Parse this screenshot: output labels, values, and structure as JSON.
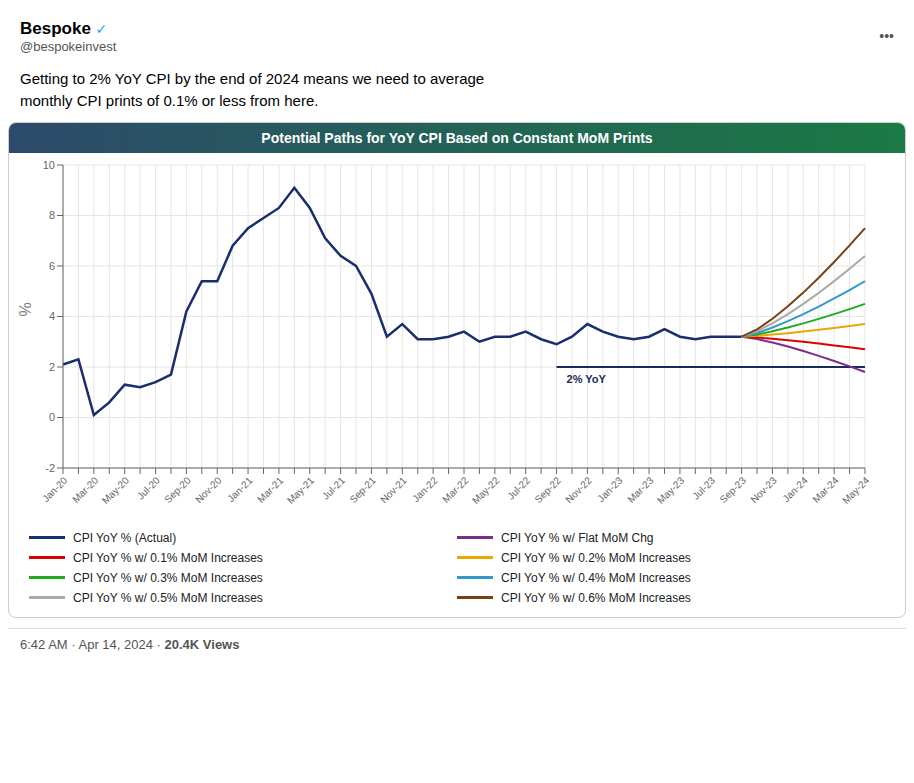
{
  "header_text1": "Bespoke",
  "header_badge": "✓",
  "header_text2": "@bespokeinvest",
  "menu": "•••",
  "body_text": "Getting to 2% YoY CPI by the end of 2024 means we need to average\nmonthly CPI prints of 0.1% or less from here.",
  "footer_text": "6:42 AM · Apr 14, 2024 · ",
  "footer_views": "20.4K Views",
  "chart_data": {
    "type": "line",
    "title": "Potential Paths for YoY CPI Based on Constant MoM Prints",
    "y_label": "%",
    "categories": [
      "Jan-20",
      null,
      "Mar-20",
      null,
      "May-20",
      null,
      "Jul-20",
      null,
      "Sep-20",
      null,
      "Nov-20",
      null,
      "Jan-21",
      null,
      "Mar-21",
      null,
      "May-21",
      null,
      "Jul-21",
      null,
      "Sep-21",
      null,
      "Nov-21",
      null,
      "Jan-22",
      null,
      "Mar-22",
      null,
      "May-22",
      null,
      "Jul-22",
      null,
      "Sep-22",
      null,
      "Nov-22",
      null,
      "Jan-23",
      null,
      "Mar-23",
      null,
      "May-23",
      null,
      "Jul-23",
      null,
      "Sep-23",
      null,
      "Nov-23",
      null,
      "Jan-24",
      null,
      "Mar-24",
      null,
      "May-24"
    ],
    "series": [
      {
        "name": "CPI YoY % (Actual)",
        "color": "#1a2e6e",
        "values": [
          2.1,
          2.3,
          0.1,
          0.6,
          1.3,
          1.2,
          1.4,
          1.7,
          4.2,
          5.4,
          5.4,
          6.8,
          7.5,
          7.9,
          8.3,
          9.1,
          8.3,
          7.1,
          6.4,
          6.0,
          4.9,
          3.2,
          3.7,
          3.1,
          3.1,
          3.2,
          3.4,
          3.0,
          3.2,
          3.2,
          3.4,
          3.1,
          2.9,
          3.2,
          3.7,
          3.4,
          3.2,
          3.1,
          3.2,
          3.5,
          3.2,
          3.1,
          3.2,
          3.2,
          3.2,
          null,
          null,
          null,
          null,
          null,
          null,
          null,
          null
        ]
      },
      {
        "name": "CPI YoY % w/ Flat MoM Chg",
        "color": "#7b2d8b",
        "values": [
          null,
          null,
          null,
          null,
          null,
          null,
          null,
          null,
          null,
          null,
          null,
          null,
          null,
          null,
          null,
          null,
          null,
          null,
          null,
          null,
          null,
          null,
          null,
          null,
          null,
          null,
          null,
          null,
          null,
          null,
          null,
          null,
          null,
          null,
          null,
          null,
          null,
          null,
          null,
          null,
          null,
          null,
          null,
          null,
          3.2,
          3.1062,
          2.9691,
          2.8088,
          2.6314,
          2.4401,
          2.2368,
          2.0231,
          1.8
        ]
      },
      {
        "name": "CPI YoY % w/ 0.1% MoM Increases",
        "color": "#dd0000",
        "values": [
          null,
          null,
          null,
          null,
          null,
          null,
          null,
          null,
          null,
          null,
          null,
          null,
          null,
          null,
          null,
          null,
          null,
          null,
          null,
          null,
          null,
          null,
          null,
          null,
          null,
          null,
          null,
          null,
          null,
          null,
          null,
          null,
          null,
          null,
          null,
          null,
          null,
          null,
          null,
          null,
          null,
          null,
          null,
          null,
          3.2,
          3.1665,
          3.1175,
          3.0603,
          2.9969,
          2.9286,
          2.856,
          2.7797,
          2.7
        ]
      },
      {
        "name": "CPI YoY % w/ 0.2% MoM Increases",
        "color": "#e8a800",
        "values": [
          null,
          null,
          null,
          null,
          null,
          null,
          null,
          null,
          null,
          null,
          null,
          null,
          null,
          null,
          null,
          null,
          null,
          null,
          null,
          null,
          null,
          null,
          null,
          null,
          null,
          null,
          null,
          null,
          null,
          null,
          null,
          null,
          null,
          null,
          null,
          null,
          null,
          null,
          null,
          null,
          null,
          null,
          null,
          null,
          3.2,
          3.2335,
          3.2825,
          3.3397,
          3.4031,
          3.4714,
          3.544,
          3.6203,
          3.7
        ]
      },
      {
        "name": "CPI YoY % w/ 0.3% MoM Increases",
        "color": "#22aa22",
        "values": [
          null,
          null,
          null,
          null,
          null,
          null,
          null,
          null,
          null,
          null,
          null,
          null,
          null,
          null,
          null,
          null,
          null,
          null,
          null,
          null,
          null,
          null,
          null,
          null,
          null,
          null,
          null,
          null,
          null,
          null,
          null,
          null,
          null,
          null,
          null,
          null,
          null,
          null,
          null,
          null,
          null,
          null,
          null,
          null,
          3.2,
          3.2871,
          3.4144,
          3.5632,
          3.728,
          3.9056,
          4.0944,
          4.2928,
          4.5
        ]
      },
      {
        "name": "CPI YoY % w/ 0.4% MoM Increases",
        "color": "#3399cc",
        "values": [
          null,
          null,
          null,
          null,
          null,
          null,
          null,
          null,
          null,
          null,
          null,
          null,
          null,
          null,
          null,
          null,
          null,
          null,
          null,
          null,
          null,
          null,
          null,
          null,
          null,
          null,
          null,
          null,
          null,
          null,
          null,
          null,
          null,
          null,
          null,
          null,
          null,
          null,
          null,
          null,
          null,
          null,
          null,
          null,
          3.2,
          3.3474,
          3.5629,
          3.8147,
          4.0935,
          4.3942,
          4.7136,
          5.0494,
          5.4
        ]
      },
      {
        "name": "CPI YoY % w/ 0.5% MoM Increases",
        "color": "#aaaaaa",
        "values": [
          null,
          null,
          null,
          null,
          null,
          null,
          null,
          null,
          null,
          null,
          null,
          null,
          null,
          null,
          null,
          null,
          null,
          null,
          null,
          null,
          null,
          null,
          null,
          null,
          null,
          null,
          null,
          null,
          null,
          null,
          null,
          null,
          null,
          null,
          null,
          null,
          null,
          null,
          null,
          null,
          null,
          null,
          null,
          null,
          3.2,
          3.4144,
          3.7278,
          4.0941,
          4.4996,
          4.937,
          5.4016,
          5.8901,
          6.4
        ]
      },
      {
        "name": "CPI YoY % w/ 0.6% MoM Increases",
        "color": "#7b4010",
        "values": [
          null,
          null,
          null,
          null,
          null,
          null,
          null,
          null,
          null,
          null,
          null,
          null,
          null,
          null,
          null,
          null,
          null,
          null,
          null,
          null,
          null,
          null,
          null,
          null,
          null,
          null,
          null,
          null,
          null,
          null,
          null,
          null,
          null,
          null,
          null,
          null,
          null,
          null,
          null,
          null,
          null,
          null,
          null,
          null,
          3.2,
          3.488,
          3.9092,
          4.4015,
          4.9463,
          5.5341,
          6.1583,
          6.8148,
          7.5
        ]
      }
    ],
    "ylim": [
      -2,
      10
    ],
    "yticks": [
      -2,
      0,
      2,
      4,
      6,
      8,
      10
    ],
    "grid": true,
    "annotations": [
      {
        "text": "2% YoY",
        "y": 2,
        "from": "Sep-22",
        "to": "May-24",
        "color": "#1a2a5a"
      }
    ]
  }
}
